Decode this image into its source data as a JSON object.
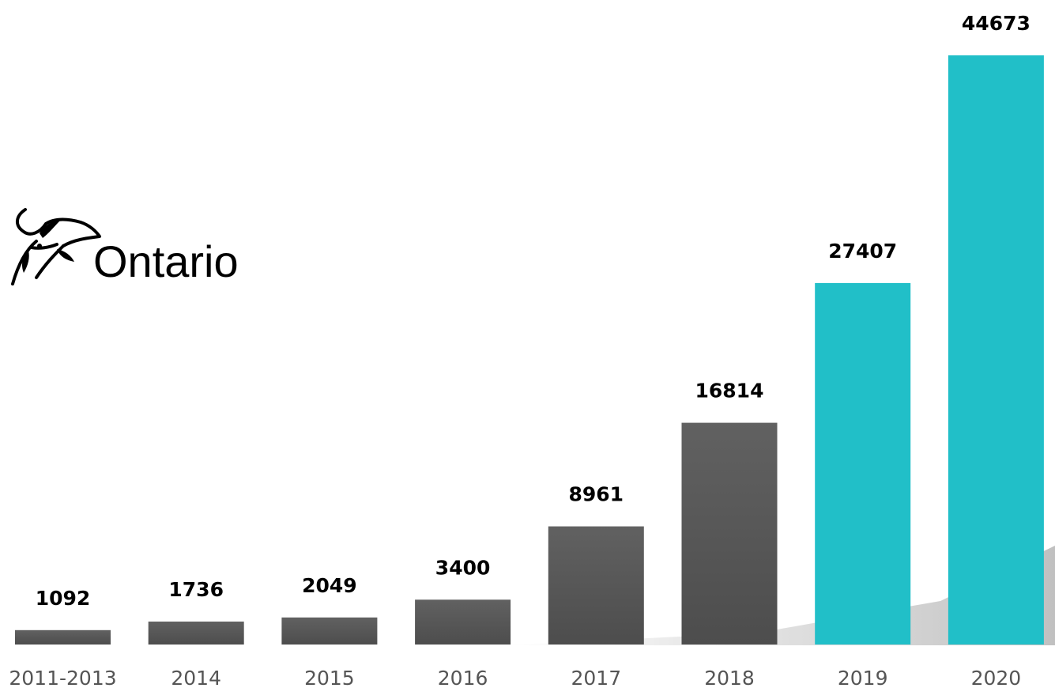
{
  "logo": {
    "text": "Ontario",
    "icon": "trillium-icon"
  },
  "colors": {
    "bar_dark": "#555555",
    "bar_highlight": "#21BFC8",
    "value_text": "#000000",
    "tick_text": "#555555"
  },
  "chart_data": {
    "type": "bar",
    "title": "",
    "xlabel": "",
    "ylabel": "",
    "categories": [
      "2011-2013",
      "2014",
      "2015",
      "2016",
      "2017",
      "2018",
      "2019",
      "2020"
    ],
    "values": [
      1092,
      1736,
      2049,
      3400,
      8961,
      16814,
      27407,
      44673
    ],
    "value_labels": [
      "1092",
      "1736",
      "2049",
      "3400",
      "8961",
      "16814",
      "27407",
      "44673"
    ],
    "highlighted_categories": [
      "2019",
      "2020"
    ],
    "ylim": [
      0,
      44673
    ],
    "grid": false,
    "legend": "none"
  }
}
